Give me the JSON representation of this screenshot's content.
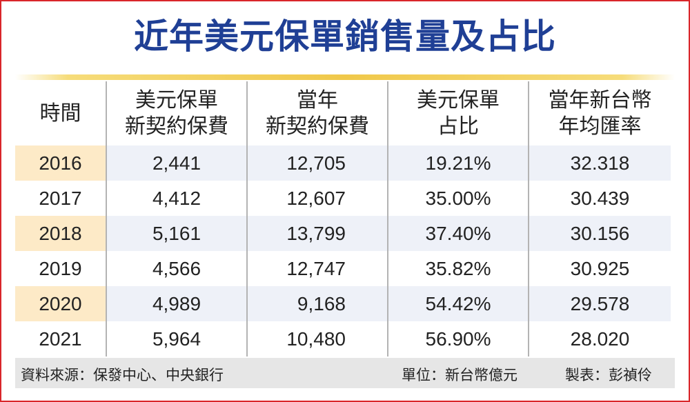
{
  "title": "近年美元保單銷售量及占比",
  "table": {
    "headers": [
      [
        "時間"
      ],
      [
        "美元保單",
        "新契約保費"
      ],
      [
        "當年",
        "新契約保費"
      ],
      [
        "美元保單",
        "占比"
      ],
      [
        "當年新台幣",
        "年均匯率"
      ]
    ],
    "rows": [
      [
        "2016",
        "2,441",
        "12,705",
        "19.21%",
        "32.318"
      ],
      [
        "2017",
        "4,412",
        "12,607",
        "35.00%",
        "30.439"
      ],
      [
        "2018",
        "5,161",
        "13,799",
        "37.40%",
        "30.156"
      ],
      [
        "2019",
        "4,566",
        "12,747",
        "35.82%",
        "30.925"
      ],
      [
        "2020",
        "4,989",
        "9,168",
        "54.42%",
        "29.578"
      ],
      [
        "2021",
        "5,964",
        "10,480",
        "56.90%",
        "28.020"
      ]
    ]
  },
  "footer": {
    "source": "資料來源：保發中心、中央銀行",
    "unit": "單位：新台幣億元",
    "maker": "製表：彭禎伶"
  },
  "colors": {
    "title": "#1f3f95",
    "border": "#d9262a",
    "rule": "#f0c84a",
    "row_shade": "#eef1f8",
    "year_shade": "#fdeac7",
    "footer_bg": "#e6e6e6"
  }
}
